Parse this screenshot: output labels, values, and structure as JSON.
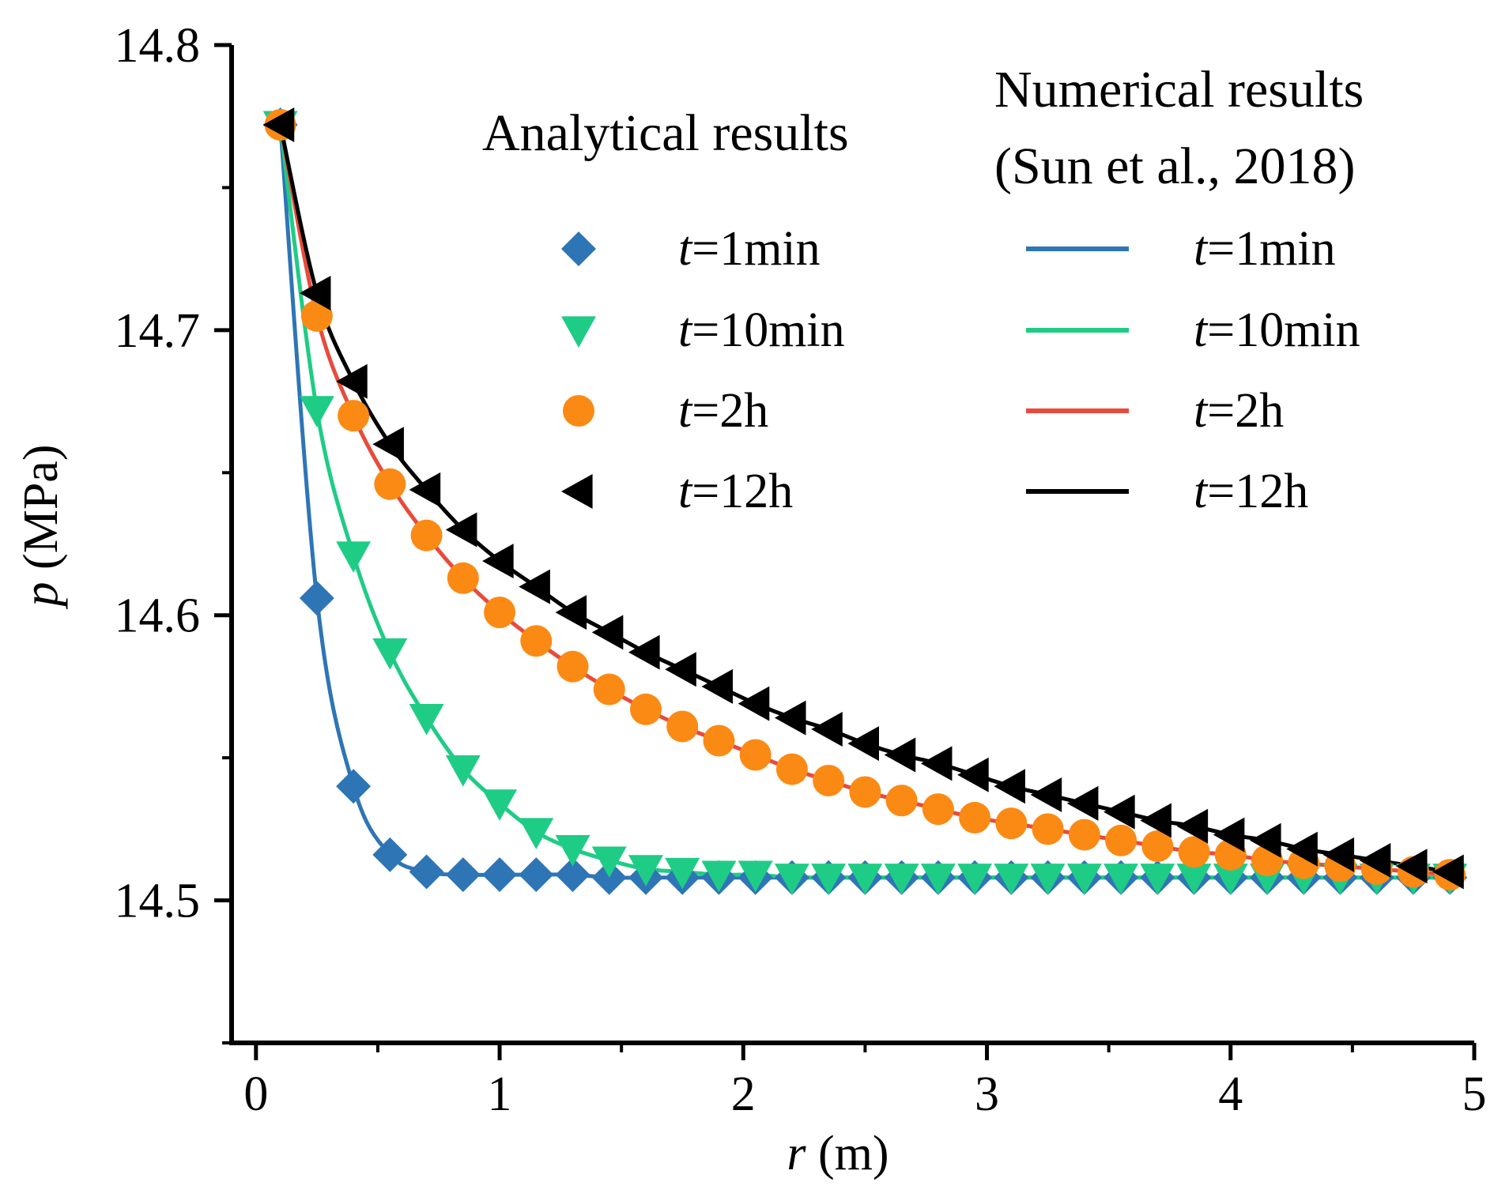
{
  "chart_data": {
    "type": "line",
    "title": "",
    "xlabel": {
      "var": "r",
      "unit": " (m)"
    },
    "ylabel": {
      "var": "p",
      "unit": " (MPa)"
    },
    "xlim": [
      -0.1,
      5.0
    ],
    "ylim": [
      14.45,
      14.8
    ],
    "x_ticks": [
      "0",
      "1",
      "2",
      "3",
      "4",
      "5"
    ],
    "y_ticks": [
      "14.5",
      "14.6",
      "14.7",
      "14.8"
    ],
    "legend_analytical_title": "Analytical results",
    "legend_numerical_title_1": "Numerical results",
    "legend_numerical_title_2": "(Sun et al., 2018)",
    "legend_t": "t",
    "colors": {
      "t1min": "#2e75b6",
      "t10min": "#1fcc85",
      "t2h": "#fb8a14",
      "t12h": "#000000",
      "line_t2h": "#e84b3c"
    },
    "series": [
      {
        "name": "t=1min",
        "label_var": "t",
        "label_value": "=1min",
        "marker": "diamond",
        "color_key": "t1min",
        "x": [
          0.1,
          0.25,
          0.4,
          0.55,
          0.7,
          0.85,
          1.0,
          1.15,
          1.3,
          1.45,
          1.6,
          1.75,
          1.9,
          2.05,
          2.2,
          2.35,
          2.5,
          2.65,
          2.8,
          2.95,
          3.1,
          3.25,
          3.4,
          3.55,
          3.7,
          3.85,
          4.0,
          4.15,
          4.3,
          4.45,
          4.6,
          4.75,
          4.9
        ],
        "y": [
          14.772,
          14.606,
          14.54,
          14.516,
          14.51,
          14.509,
          14.509,
          14.509,
          14.509,
          14.508,
          14.508,
          14.508,
          14.508,
          14.508,
          14.508,
          14.508,
          14.508,
          14.508,
          14.508,
          14.508,
          14.508,
          14.508,
          14.508,
          14.508,
          14.508,
          14.508,
          14.508,
          14.508,
          14.508,
          14.508,
          14.508,
          14.508,
          14.508
        ]
      },
      {
        "name": "t=10min",
        "label_var": "t",
        "label_value": "=10min",
        "marker": "triangle-down",
        "color_key": "t10min",
        "x": [
          0.1,
          0.25,
          0.4,
          0.55,
          0.7,
          0.85,
          1.0,
          1.15,
          1.3,
          1.45,
          1.6,
          1.75,
          1.9,
          2.05,
          2.2,
          2.35,
          2.5,
          2.65,
          2.8,
          2.95,
          3.1,
          3.25,
          3.4,
          3.55,
          3.7,
          3.85,
          4.0,
          4.15,
          4.3,
          4.45,
          4.6,
          4.75,
          4.9
        ],
        "y": [
          14.772,
          14.672,
          14.621,
          14.587,
          14.564,
          14.546,
          14.534,
          14.524,
          14.518,
          14.514,
          14.511,
          14.51,
          14.509,
          14.509,
          14.508,
          14.508,
          14.508,
          14.508,
          14.508,
          14.508,
          14.508,
          14.508,
          14.508,
          14.508,
          14.508,
          14.508,
          14.508,
          14.508,
          14.508,
          14.508,
          14.508,
          14.508,
          14.508
        ]
      },
      {
        "name": "t=2h",
        "label_var": "t",
        "label_value": "=2h",
        "marker": "circle",
        "color_key": "t2h",
        "line_color_key": "line_t2h",
        "x": [
          0.1,
          0.25,
          0.4,
          0.55,
          0.7,
          0.85,
          1.0,
          1.15,
          1.3,
          1.45,
          1.6,
          1.75,
          1.9,
          2.05,
          2.2,
          2.35,
          2.5,
          2.65,
          2.8,
          2.95,
          3.1,
          3.25,
          3.4,
          3.55,
          3.7,
          3.85,
          4.0,
          4.15,
          4.3,
          4.45,
          4.6,
          4.75,
          4.9
        ],
        "y": [
          14.772,
          14.705,
          14.67,
          14.646,
          14.628,
          14.613,
          14.601,
          14.591,
          14.582,
          14.574,
          14.567,
          14.561,
          14.556,
          14.551,
          14.546,
          14.542,
          14.538,
          14.535,
          14.532,
          14.529,
          14.527,
          14.525,
          14.523,
          14.521,
          14.519,
          14.517,
          14.516,
          14.514,
          14.513,
          14.512,
          14.511,
          14.51,
          14.509
        ]
      },
      {
        "name": "t=12h",
        "label_var": "t",
        "label_value": "=12h",
        "marker": "triangle-left",
        "color_key": "t12h",
        "x": [
          0.1,
          0.25,
          0.4,
          0.55,
          0.7,
          0.85,
          1.0,
          1.15,
          1.3,
          1.45,
          1.6,
          1.75,
          1.9,
          2.05,
          2.2,
          2.35,
          2.5,
          2.65,
          2.8,
          2.95,
          3.1,
          3.25,
          3.4,
          3.55,
          3.7,
          3.85,
          4.0,
          4.15,
          4.3,
          4.45,
          4.6,
          4.75,
          4.9
        ],
        "y": [
          14.772,
          14.713,
          14.682,
          14.66,
          14.644,
          14.63,
          14.619,
          14.61,
          14.601,
          14.594,
          14.587,
          14.581,
          14.575,
          14.569,
          14.564,
          14.56,
          14.555,
          14.551,
          14.548,
          14.544,
          14.54,
          14.537,
          14.534,
          14.531,
          14.528,
          14.526,
          14.523,
          14.521,
          14.518,
          14.516,
          14.514,
          14.512,
          14.51
        ]
      }
    ]
  }
}
